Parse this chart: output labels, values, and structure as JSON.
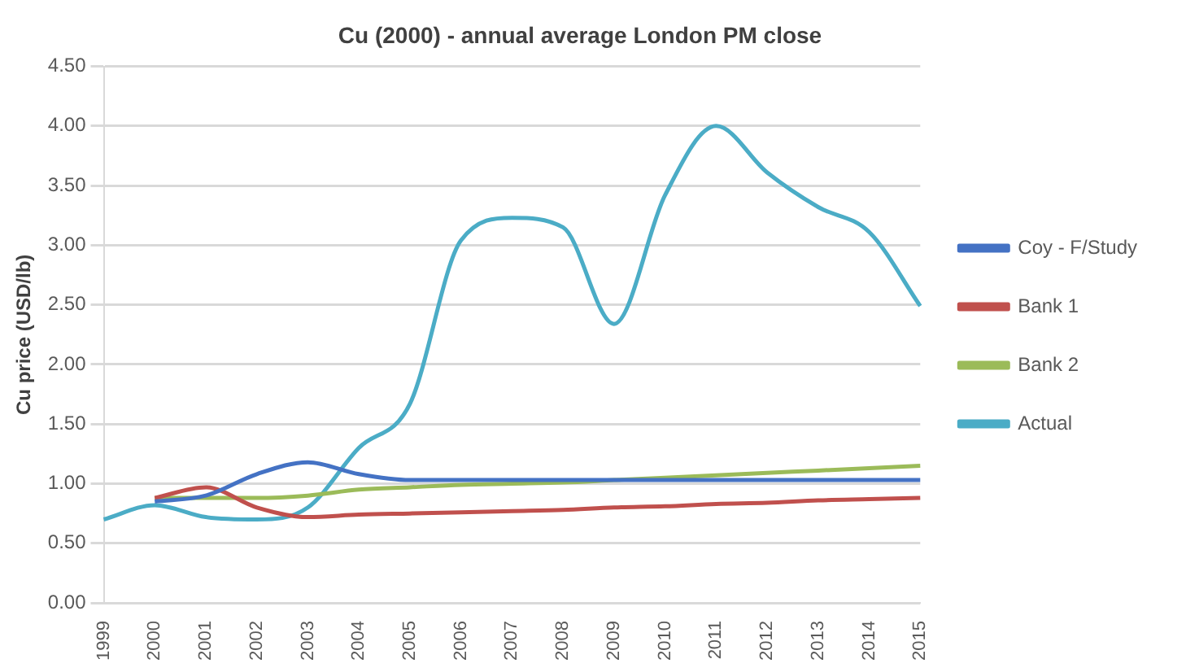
{
  "chart_data": {
    "type": "line",
    "title": "Cu (2000) - annual average London PM close",
    "ylabel": "Cu price (USD/lb)",
    "categories": [
      "1999",
      "2000",
      "2001",
      "2002",
      "2003",
      "2004",
      "2005",
      "2006",
      "2007",
      "2008",
      "2009",
      "2010",
      "2011",
      "2012",
      "2013",
      "2014",
      "2015"
    ],
    "series": [
      {
        "name": "Coy - F/Study",
        "color": "#4472c4",
        "values": [
          null,
          0.85,
          0.9,
          1.08,
          1.18,
          1.08,
          1.03,
          1.03,
          1.03,
          1.03,
          1.03,
          1.03,
          1.03,
          1.03,
          1.03,
          1.03,
          1.03
        ]
      },
      {
        "name": "Bank 1",
        "color": "#c0504d",
        "values": [
          null,
          0.88,
          0.97,
          0.8,
          0.72,
          0.74,
          0.75,
          0.76,
          0.77,
          0.78,
          0.8,
          0.81,
          0.83,
          0.84,
          0.86,
          0.87,
          0.88
        ]
      },
      {
        "name": "Bank 2",
        "color": "#9bbb59",
        "values": [
          null,
          0.88,
          0.88,
          0.88,
          0.9,
          0.95,
          0.97,
          0.99,
          1.0,
          1.01,
          1.03,
          1.05,
          1.07,
          1.09,
          1.11,
          1.13,
          1.15
        ]
      },
      {
        "name": "Actual",
        "color": "#4bacc6",
        "values": [
          0.7,
          0.82,
          0.72,
          0.7,
          0.8,
          1.3,
          1.67,
          3.04,
          3.23,
          3.15,
          2.34,
          3.42,
          4.0,
          3.61,
          3.32,
          3.11,
          2.49
        ]
      }
    ],
    "ylim": [
      0,
      4.5
    ],
    "yticks": [
      {
        "value": 0,
        "label": "0.00"
      },
      {
        "value": 0.5,
        "label": "0.50"
      },
      {
        "value": 1,
        "label": "1.00"
      },
      {
        "value": 1.5,
        "label": "1.50"
      },
      {
        "value": 2,
        "label": "2.00"
      },
      {
        "value": 2.5,
        "label": "2.50"
      },
      {
        "value": 3,
        "label": "3.00"
      },
      {
        "value": 3.5,
        "label": "3.50"
      },
      {
        "value": 4,
        "label": "4.00"
      },
      {
        "value": 4.5,
        "label": "4.50"
      }
    ],
    "grid": "y",
    "legend": "right",
    "marker": "none",
    "line_style": "solid"
  }
}
